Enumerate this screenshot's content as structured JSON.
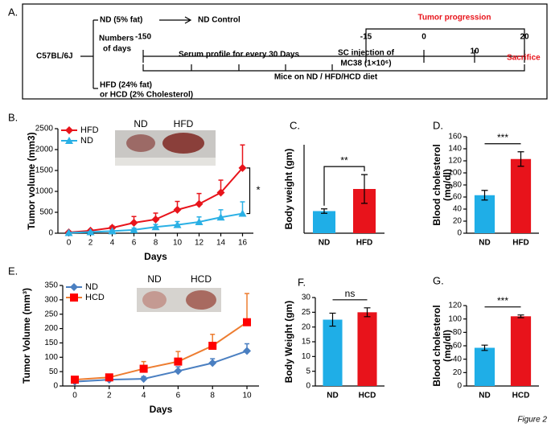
{
  "diagram": {
    "panel": "A.",
    "strain": "C57BL/6J",
    "nd_diet": "ND (5% fat)",
    "nd_control": "ND Control",
    "days_label": [
      "Numbers",
      "of days"
    ],
    "day_marks": [
      "-150",
      "-15",
      "0",
      "10",
      "20"
    ],
    "tumor_progression": "Tumor progression",
    "sacrifice": "Sacrifice",
    "serum": "Serum profile for every 30 Days",
    "injection": [
      "SC injection of",
      "MC38 (1×10⁶)"
    ],
    "diet_span": "Mice on ND / HFD/HCD diet",
    "hfd_diet": [
      "HFD (24% fat)",
      "or HCD (2% Cholesterol)"
    ]
  },
  "chart_data": [
    {
      "type": "line",
      "panel": "B.",
      "xlabel": "Days",
      "ylabel": "Tumor volume (mm3)",
      "x": [
        0,
        2,
        4,
        6,
        8,
        10,
        12,
        14,
        16
      ],
      "xlim": [
        -1,
        17
      ],
      "xticks": [
        0,
        2,
        4,
        6,
        8,
        10,
        12,
        14,
        16
      ],
      "ylim": [
        0,
        2500
      ],
      "yticks": [
        0,
        500,
        1000,
        1500,
        2000,
        2500
      ],
      "legend": "upper left",
      "inset_labels": [
        "ND",
        "HFD"
      ],
      "significance": "*",
      "series": [
        {
          "name": "HFD",
          "color": "#e8141b",
          "marker": "diamond",
          "values": [
            20,
            60,
            130,
            250,
            330,
            560,
            700,
            970,
            1560
          ],
          "errors": [
            10,
            20,
            40,
            150,
            150,
            200,
            250,
            300,
            550
          ]
        },
        {
          "name": "ND",
          "color": "#2ab0e5",
          "marker": "triangle",
          "values": [
            10,
            30,
            50,
            80,
            150,
            200,
            270,
            380,
            470
          ],
          "errors": [
            5,
            10,
            20,
            40,
            60,
            80,
            120,
            180,
            280
          ]
        }
      ]
    },
    {
      "type": "bar",
      "panel": "C.",
      "ylabel": "Body weight (gm)",
      "categories": [
        "ND",
        "HFD"
      ],
      "values": [
        20,
        40
      ],
      "errors": [
        2,
        13
      ],
      "colors": [
        "#1faee7",
        "#e8131b"
      ],
      "ylim": [
        0,
        80
      ],
      "significance": "**"
    },
    {
      "type": "bar",
      "panel": "D.",
      "ylabel": [
        "Blood cholesterol",
        "(mg/dl)"
      ],
      "categories": [
        "ND",
        "HFD"
      ],
      "values": [
        63,
        123
      ],
      "errors": [
        8,
        12
      ],
      "colors": [
        "#1faee7",
        "#e8131b"
      ],
      "ylim": [
        0,
        160
      ],
      "yticks": [
        0,
        20,
        40,
        60,
        80,
        100,
        120,
        140,
        160
      ],
      "significance": "***"
    },
    {
      "type": "line",
      "panel": "E.",
      "xlabel": "Days",
      "ylabel": "Tumor Volume (mm³)",
      "x": [
        0,
        2,
        4,
        6,
        8,
        10
      ],
      "xlim": [
        -0.7,
        10.7
      ],
      "xticks": [
        0,
        2,
        4,
        6,
        8,
        10
      ],
      "ylim": [
        0,
        350
      ],
      "yticks": [
        0,
        50,
        100,
        150,
        200,
        250,
        300,
        350
      ],
      "legend": "upper left",
      "inset_labels": [
        "ND",
        "HCD"
      ],
      "series": [
        {
          "name": "ND",
          "color": "#4a7fc1",
          "marker": "diamond",
          "values": [
            15,
            22,
            25,
            52,
            80,
            122
          ],
          "errors": [
            3,
            5,
            8,
            15,
            15,
            25
          ]
        },
        {
          "name": "HCD",
          "color": "#ed7d31",
          "marker_color": "#ff0000",
          "marker": "square",
          "values": [
            22,
            30,
            60,
            85,
            140,
            222
          ],
          "errors": [
            5,
            5,
            25,
            35,
            40,
            100
          ]
        }
      ]
    },
    {
      "type": "bar",
      "panel": "F.",
      "ylabel": "Body Weight (gm)",
      "categories": [
        "ND",
        "HCD"
      ],
      "values": [
        22.5,
        25
      ],
      "errors": [
        2.2,
        1.5
      ],
      "colors": [
        "#1faee7",
        "#e8131b"
      ],
      "ylim": [
        0,
        30
      ],
      "yticks": [
        0,
        5,
        10,
        15,
        20,
        25,
        30
      ],
      "significance": "ns"
    },
    {
      "type": "bar",
      "panel": "G.",
      "ylabel": [
        "Blood cholesterol",
        "(mg/dl)"
      ],
      "categories": [
        "ND",
        "HCD"
      ],
      "values": [
        57,
        104
      ],
      "errors": [
        4,
        2
      ],
      "colors": [
        "#1faee7",
        "#e8131b"
      ],
      "ylim": [
        0,
        120
      ],
      "yticks": [
        0,
        20,
        40,
        60,
        80,
        100,
        120
      ],
      "significance": "***"
    }
  ],
  "figure_label": "Figure 2"
}
